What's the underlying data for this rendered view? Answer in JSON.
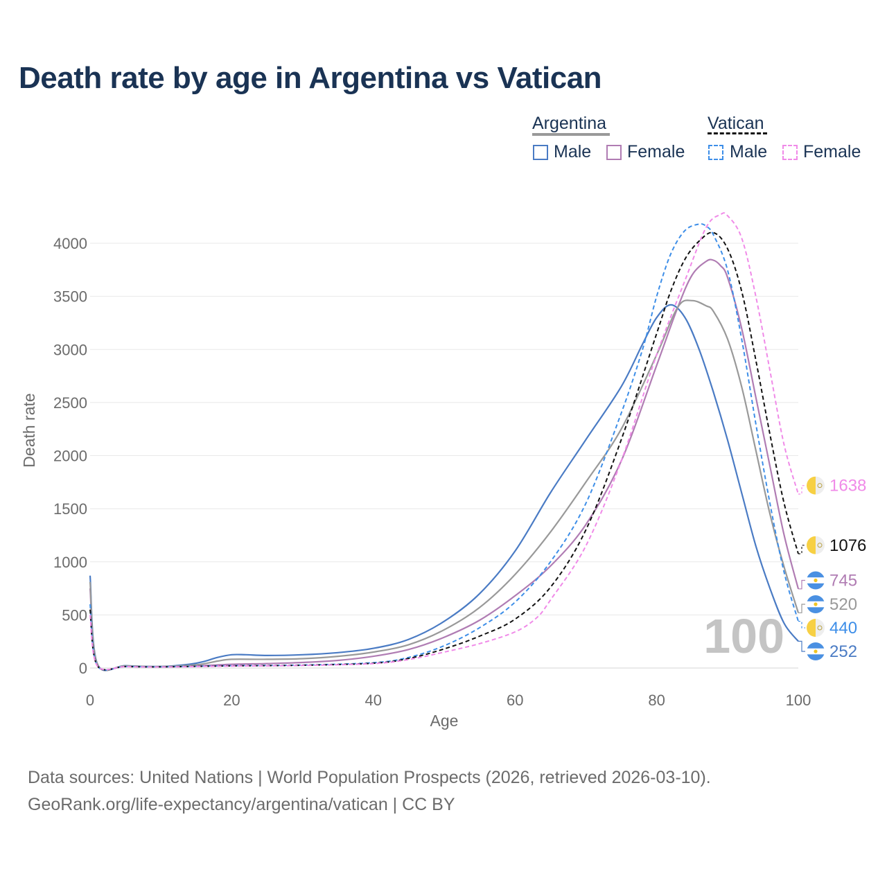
{
  "title": "Death rate by age in Argentina vs Vatican",
  "legend": {
    "groups": [
      {
        "name": "Argentina",
        "style": "solid",
        "color": "#999999",
        "items": [
          {
            "label": "Male",
            "color": "#4a7bc4"
          },
          {
            "label": "Female",
            "color": "#b07cb3"
          }
        ]
      },
      {
        "name": "Vatican",
        "style": "dashed",
        "color": "#111111",
        "items": [
          {
            "label": "Male",
            "color": "#3d8ee8"
          },
          {
            "label": "Female",
            "color": "#f08ae8"
          }
        ]
      }
    ]
  },
  "footer": {
    "line1": "Data sources: United Nations | World Population Prospects (2026, retrieved 2026-03-10).",
    "line2": "GeoRank.org/life-expectancy/argentina/vatican | CC BY"
  },
  "chart_data": {
    "type": "line",
    "title": "Death rate by age in Argentina vs Vatican",
    "xlabel": "Age",
    "ylabel": "Death rate",
    "xlim": [
      0,
      100
    ],
    "ylim": [
      0,
      4300
    ],
    "xticks": [
      0,
      20,
      40,
      60,
      80,
      100
    ],
    "yticks": [
      0,
      500,
      1000,
      1500,
      2000,
      2500,
      3000,
      3500,
      4000
    ],
    "grid": true,
    "watermark": "100",
    "series": [
      {
        "name": "Argentina Male",
        "country": "Argentina",
        "color": "#4a7bc4",
        "dash": false,
        "end_label": "252",
        "end_value": 252,
        "flag": "argentina",
        "x": [
          0,
          1,
          5,
          10,
          14,
          16,
          18,
          20,
          22,
          25,
          30,
          35,
          40,
          45,
          50,
          55,
          60,
          65,
          70,
          75,
          78,
          80,
          82,
          84,
          86,
          88,
          90,
          92,
          94,
          96,
          98,
          100
        ],
        "y": [
          870,
          45,
          22,
          15,
          35,
          60,
          100,
          125,
          125,
          118,
          125,
          145,
          185,
          270,
          440,
          700,
          1100,
          1650,
          2150,
          2650,
          3050,
          3300,
          3420,
          3300,
          3000,
          2600,
          2150,
          1650,
          1150,
          750,
          420,
          252
        ]
      },
      {
        "name": "Argentina Female",
        "country": "Argentina",
        "color": "#b07cb3",
        "dash": false,
        "end_label": "745",
        "end_value": 745,
        "flag": "argentina",
        "x": [
          0,
          1,
          5,
          10,
          15,
          20,
          25,
          30,
          35,
          40,
          45,
          50,
          55,
          60,
          65,
          70,
          75,
          80,
          83,
          85,
          87,
          88,
          89,
          90,
          92,
          94,
          96,
          98,
          100
        ],
        "y": [
          750,
          38,
          18,
          12,
          20,
          35,
          42,
          52,
          72,
          110,
          175,
          290,
          450,
          680,
          960,
          1350,
          1950,
          2850,
          3400,
          3700,
          3830,
          3840,
          3790,
          3680,
          3200,
          2550,
          1900,
          1250,
          745
        ]
      },
      {
        "name": "Argentina (total)",
        "country": "Argentina",
        "color": "#999999",
        "dash": false,
        "end_label": "520",
        "end_value": 520,
        "flag": "argentina",
        "x": [
          0,
          1,
          5,
          10,
          15,
          18,
          20,
          25,
          30,
          35,
          40,
          45,
          50,
          55,
          60,
          65,
          70,
          75,
          80,
          83,
          85,
          87,
          88,
          90,
          92,
          94,
          96,
          98,
          100
        ],
        "y": [
          810,
          40,
          20,
          14,
          30,
          65,
          82,
          82,
          88,
          110,
          150,
          220,
          360,
          570,
          880,
          1280,
          1750,
          2250,
          2950,
          3400,
          3460,
          3410,
          3360,
          3100,
          2650,
          2050,
          1450,
          950,
          520
        ]
      },
      {
        "name": "Vatican Male",
        "country": "Vatican",
        "color": "#3d8ee8",
        "dash": true,
        "end_label": "440",
        "end_value": 440,
        "flag": "vatican",
        "x": [
          0,
          1,
          5,
          10,
          20,
          30,
          40,
          45,
          50,
          55,
          60,
          65,
          70,
          75,
          78,
          80,
          82,
          84,
          86,
          87,
          88,
          90,
          92,
          94,
          96,
          98,
          100
        ],
        "y": [
          600,
          25,
          15,
          12,
          22,
          28,
          50,
          100,
          210,
          380,
          620,
          1000,
          1550,
          2400,
          3000,
          3500,
          3900,
          4120,
          4180,
          4160,
          4080,
          3750,
          3100,
          2300,
          1550,
          900,
          440
        ]
      },
      {
        "name": "Vatican (total)",
        "country": "Vatican",
        "color": "#111111",
        "dash": true,
        "end_label": "1076",
        "end_value": 1076,
        "flag": "vatican",
        "x": [
          0,
          1,
          5,
          10,
          20,
          30,
          40,
          45,
          50,
          55,
          60,
          65,
          70,
          75,
          80,
          82,
          84,
          86,
          88,
          90,
          92,
          94,
          96,
          98,
          100
        ],
        "y": [
          550,
          25,
          14,
          11,
          20,
          26,
          45,
          90,
          180,
          300,
          460,
          760,
          1300,
          2150,
          3150,
          3550,
          3850,
          4020,
          4100,
          3950,
          3550,
          2900,
          2200,
          1550,
          1076
        ]
      },
      {
        "name": "Vatican Female",
        "country": "Vatican",
        "color": "#f08ae8",
        "dash": true,
        "end_label": "1638",
        "end_value": 1638,
        "flag": "vatican",
        "x": [
          0,
          1,
          5,
          10,
          20,
          30,
          40,
          45,
          50,
          55,
          60,
          63,
          65,
          70,
          75,
          80,
          84,
          87,
          89,
          90,
          92,
          94,
          96,
          98,
          100
        ],
        "y": [
          500,
          22,
          13,
          10,
          18,
          24,
          42,
          80,
          150,
          230,
          340,
          470,
          640,
          1150,
          1950,
          2950,
          3650,
          4150,
          4270,
          4260,
          4050,
          3500,
          2800,
          2100,
          1638
        ]
      }
    ]
  }
}
